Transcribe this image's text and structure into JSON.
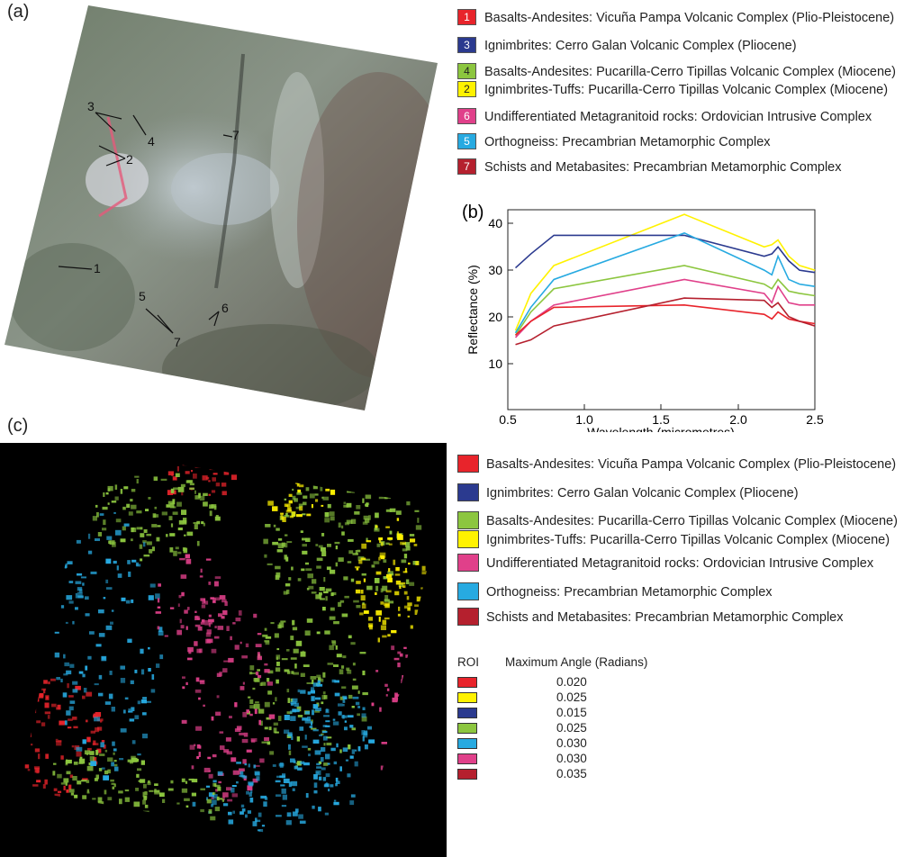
{
  "panel_labels": {
    "a": "(a)",
    "b": "(b)",
    "c": "(c)"
  },
  "legend_a": [
    {
      "num": "1",
      "text": "Basalts-Andesites: Vicuña Pampa Volcanic Complex (Plio-Pleistocene)",
      "color": "#e8242b",
      "numcolor": "#ffffff"
    },
    {
      "num": "3",
      "text": "Ignimbrites: Cerro Galan Volcanic Complex (Pliocene)",
      "color": "#2b3a8f",
      "numcolor": "#ffffff"
    },
    {
      "num": "4",
      "text": "Basalts-Andesites: Pucarilla-Cerro Tipillas Volcanic Complex (Miocene)",
      "color": "#8cc63f",
      "numcolor": "#222222"
    },
    {
      "num": "2",
      "text": "Ignimbrites-Tuffs: Pucarilla-Cerro Tipillas Volcanic Complex (Miocene)",
      "color": "#fff200",
      "numcolor": "#222222"
    },
    {
      "num": "6",
      "text": "Undifferentiated Metagranitoid rocks: Ordovician Intrusive Complex",
      "color": "#e0408a",
      "numcolor": "#ffffff"
    },
    {
      "num": "5",
      "text": "Orthogneiss: Precambrian Metamorphic Complex",
      "color": "#27aae1",
      "numcolor": "#ffffff"
    },
    {
      "num": "7",
      "text": "Schists and Metabasites: Precambrian Metamorphic Complex",
      "color": "#b5202e",
      "numcolor": "#ffffff"
    }
  ],
  "image_a_labels": [
    "3",
    "4",
    "7",
    "2",
    "1",
    "5",
    "7",
    "6"
  ],
  "chart_data": {
    "type": "line",
    "xlabel": "Wavelength (micrometres)",
    "ylabel": "Reflectance (%)",
    "xlim": [
      0.5,
      2.5
    ],
    "ylim": [
      0,
      43
    ],
    "xticks": [
      "0.5",
      "1.0",
      "1.5",
      "2.0",
      "2.5"
    ],
    "yticks": [
      "10",
      "20",
      "30",
      "40"
    ],
    "x": [
      0.55,
      0.65,
      0.8,
      1.65,
      2.17,
      2.22,
      2.26,
      2.33,
      2.4,
      2.5
    ],
    "series": [
      {
        "color": "#fff200",
        "values": [
          17.0,
          25.0,
          31.0,
          42.0,
          35.0,
          35.5,
          36.5,
          33.0,
          31.0,
          30.0
        ]
      },
      {
        "color": "#2b3a8f",
        "values": [
          30.5,
          33.5,
          37.5,
          37.5,
          33.0,
          33.5,
          35.0,
          32.0,
          30.0,
          29.5
        ]
      },
      {
        "color": "#27aae1",
        "values": [
          16.5,
          22.0,
          28.0,
          38.0,
          30.0,
          29.0,
          33.0,
          28.0,
          27.0,
          26.5
        ]
      },
      {
        "color": "#8cc63f",
        "values": [
          16.0,
          21.0,
          26.0,
          31.0,
          27.0,
          26.0,
          28.0,
          25.5,
          25.0,
          24.5
        ]
      },
      {
        "color": "#e0408a",
        "values": [
          15.5,
          19.0,
          22.5,
          28.0,
          25.0,
          23.0,
          26.5,
          23.0,
          22.5,
          22.5
        ]
      },
      {
        "color": "#e8242b",
        "values": [
          16.0,
          19.0,
          22.0,
          22.5,
          20.5,
          19.5,
          21.0,
          19.5,
          19.0,
          18.5
        ]
      },
      {
        "color": "#b5202e",
        "values": [
          14.0,
          15.0,
          18.0,
          24.0,
          23.5,
          22.0,
          23.0,
          20.0,
          19.0,
          18.0
        ]
      }
    ]
  },
  "legend_c": [
    {
      "text": "Basalts-Andesites: Vicuña Pampa Volcanic Complex (Plio-Pleistocene)",
      "color": "#e8242b"
    },
    {
      "text": "Ignimbrites: Cerro Galan Volcanic Complex (Pliocene)",
      "color": "#2b3a8f"
    },
    {
      "text": "Basalts-Andesites: Pucarilla-Cerro Tipillas Volcanic Complex (Miocene)",
      "color": "#8cc63f"
    },
    {
      "text": "Ignimbrites-Tuffs: Pucarilla-Cerro Tipillas Volcanic Complex (Miocene)",
      "color": "#fff200"
    },
    {
      "text": "Undifferentiated Metagranitoid rocks: Ordovician Intrusive Complex",
      "color": "#e0408a"
    },
    {
      "text": "Orthogneiss: Precambrian Metamorphic Complex",
      "color": "#27aae1"
    },
    {
      "text": "Schists and Metabasites: Precambrian Metamorphic Complex",
      "color": "#b5202e"
    }
  ],
  "roi_table": {
    "col1": "ROI",
    "col2": "Maximum Angle (Radians)",
    "rows": [
      {
        "color": "#e8242b",
        "value": "0.020"
      },
      {
        "color": "#fff200",
        "value": "0.025"
      },
      {
        "color": "#2b3a8f",
        "value": "0.015"
      },
      {
        "color": "#8cc63f",
        "value": "0.025"
      },
      {
        "color": "#27aae1",
        "value": "0.030"
      },
      {
        "color": "#e0408a",
        "value": "0.030"
      },
      {
        "color": "#b5202e",
        "value": "0.035"
      }
    ]
  }
}
